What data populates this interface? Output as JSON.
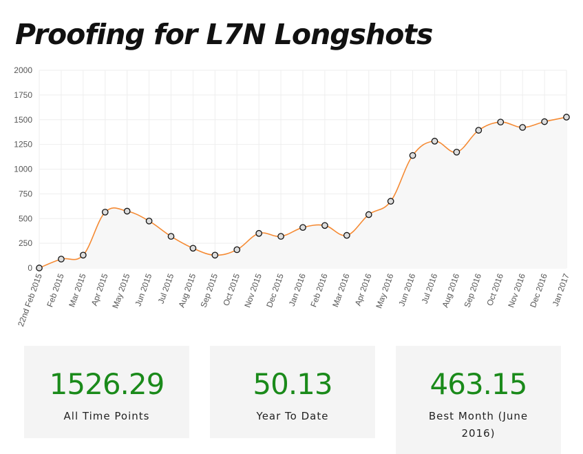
{
  "title": "Proofing for L7N Longshots",
  "colors": {
    "line": "#f58a33",
    "fill": "#f7f7f7",
    "point_fill": "#dddddd",
    "point_stroke": "#111111",
    "grid": "#eeeeee",
    "stat_value": "#1a8a1a",
    "card_bg": "#f4f4f4"
  },
  "chart_data": {
    "type": "area",
    "title": "",
    "xlabel": "",
    "ylabel": "",
    "ylim": [
      0,
      2000
    ],
    "y_ticks": [
      0,
      250,
      500,
      750,
      1000,
      1250,
      1500,
      1750,
      2000
    ],
    "grid": true,
    "legend": "none",
    "categories": [
      "22nd Feb 2015",
      "Feb 2015",
      "Mar 2015",
      "Apr 2015",
      "May 2015",
      "Jun 2015",
      "Jul 2015",
      "Aug 2015",
      "Sep 2015",
      "Oct 2015",
      "Nov 2015",
      "Dec 2015",
      "Jan 2016",
      "Feb 2016",
      "Mar 2016",
      "Apr 2016",
      "May 2016",
      "Jun 2016",
      "Jul 2016",
      "Aug 2016",
      "Sep 2016",
      "Oct 2016",
      "Nov 2016",
      "Dec 2016",
      "Jan 2017"
    ],
    "values": [
      0,
      90,
      130,
      565,
      575,
      475,
      320,
      200,
      130,
      185,
      350,
      320,
      410,
      430,
      330,
      540,
      675,
      1138,
      1283,
      1172,
      1393,
      1476,
      1422,
      1480,
      1526
    ]
  },
  "stats": [
    {
      "value": "1526.29",
      "label": "All Time Points"
    },
    {
      "value": "50.13",
      "label": "Year To Date"
    },
    {
      "value": "463.15",
      "label": "Best Month (June 2016)"
    }
  ]
}
